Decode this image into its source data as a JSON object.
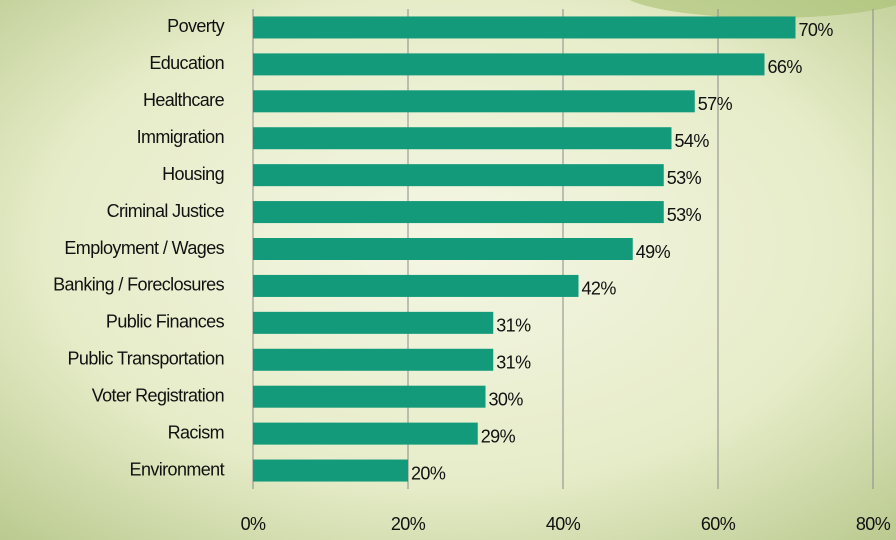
{
  "chart_data": {
    "type": "bar",
    "orientation": "horizontal",
    "categories": [
      "Poverty",
      "Education",
      "Healthcare",
      "Immigration",
      "Housing",
      "Criminal Justice",
      "Employment / Wages",
      "Banking / Foreclosures",
      "Public Finances",
      "Public Transportation",
      "Voter Registration",
      "Racism",
      "Environment"
    ],
    "values": [
      70,
      66,
      57,
      54,
      53,
      53,
      49,
      42,
      31,
      31,
      30,
      29,
      20
    ],
    "value_labels": [
      "70%",
      "66%",
      "57%",
      "54%",
      "53%",
      "53%",
      "49%",
      "42%",
      "31%",
      "31%",
      "30%",
      "29%",
      "20%"
    ],
    "color": "#129a7a",
    "xlim": [
      0,
      80
    ],
    "xticks": [
      {
        "value": 0,
        "label": "0%"
      },
      {
        "value": 20,
        "label": "20%"
      },
      {
        "value": 40,
        "label": "40%"
      },
      {
        "value": 60,
        "label": "60%"
      },
      {
        "value": 80,
        "label": "80%"
      }
    ],
    "grid": true
  }
}
